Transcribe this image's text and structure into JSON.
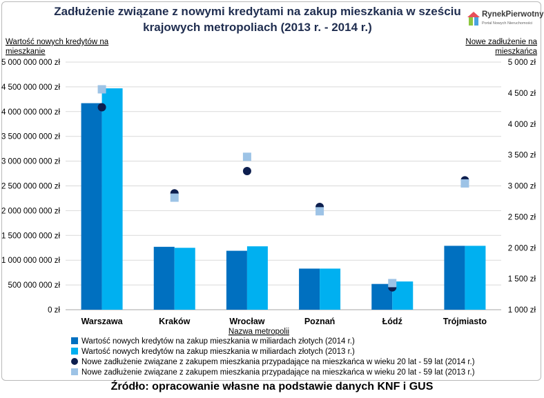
{
  "logo": {
    "name": "RynekPierwotny",
    "tagline": "Portal Nowych Nieruchomości"
  },
  "footer": {
    "source": "Źródło: opracowanie własne na podstawie danych KNF i GUS"
  },
  "chart_data": {
    "type": "bar",
    "title_lines": [
      "Zadłużenie związane z nowymi kredytami na zakup mieszkania w sześciu",
      "krajowych metropoliach (2013 r. - 2014 r.)"
    ],
    "ylabel_lines": [
      "Wartość nowych kredytów na",
      "mieszkanie"
    ],
    "y2label_lines": [
      "Nowe zadłużenie na",
      "mieszkańca"
    ],
    "xlabel": "Nazwa metropolii",
    "categories": [
      "Warszawa",
      "Kraków",
      "Wrocław",
      "Poznań",
      "Łódź",
      "Trójmiasto"
    ],
    "ylim": [
      0,
      5000000000
    ],
    "y2lim": [
      1000,
      5000
    ],
    "y_ticks": [
      {
        "value": 0,
        "label": "0 zł"
      },
      {
        "value": 500000000,
        "label": "500 000 000 zł"
      },
      {
        "value": 1000000000,
        "label": "1 000 000 000 zł"
      },
      {
        "value": 1500000000,
        "label": "1 500 000 000 zł"
      },
      {
        "value": 2000000000,
        "label": "2 000 000 000 zł"
      },
      {
        "value": 2500000000,
        "label": "2 500 000 000 zł"
      },
      {
        "value": 3000000000,
        "label": "3 000 000 000 zł"
      },
      {
        "value": 3500000000,
        "label": "3 500 000 000 zł"
      },
      {
        "value": 4000000000,
        "label": "4 000 000 000 zł"
      },
      {
        "value": 4500000000,
        "label": "4 500 000 000 zł"
      },
      {
        "value": 5000000000,
        "label": "5 000 000 000 zł"
      }
    ],
    "y2_ticks": [
      {
        "value": 1000,
        "label": "1 000 zł"
      },
      {
        "value": 1500,
        "label": "1 500 zł"
      },
      {
        "value": 2000,
        "label": "2 000 zł"
      },
      {
        "value": 2500,
        "label": "2 500 zł"
      },
      {
        "value": 3000,
        "label": "3 000 zł"
      },
      {
        "value": 3500,
        "label": "3 500 zł"
      },
      {
        "value": 4000,
        "label": "4 000 zł"
      },
      {
        "value": 4500,
        "label": "4 500 zł"
      },
      {
        "value": 5000,
        "label": "5 000 zł"
      }
    ],
    "grid": true,
    "legend_position": "bottom",
    "series": [
      {
        "name": "Wartość nowych kredytów na zakup mieszkania w miliardach złotych (2014 r.)",
        "kind": "bar",
        "axis": "left",
        "marker": "square",
        "color": "#0070c0",
        "values": [
          4170000000,
          1270000000,
          1190000000,
          830000000,
          520000000,
          1290000000
        ]
      },
      {
        "name": "Wartość nowych kredytów na zakup mieszkania w miliardach złotych (2013 r.)",
        "kind": "bar",
        "axis": "left",
        "marker": "square",
        "color": "#00b0f0",
        "values": [
          4470000000,
          1250000000,
          1280000000,
          830000000,
          570000000,
          1290000000
        ]
      },
      {
        "name": "Nowe zadłużenie związane z zakupem mieszkania przypadające na mieszkańca w wieku 20 lat - 59 lat (2014 r.)",
        "kind": "scatter",
        "axis": "right",
        "marker": "circle",
        "color": "#0d1f4f",
        "values": [
          4270,
          2880,
          3240,
          2660,
          1360,
          3090
        ]
      },
      {
        "name": "Nowe zadłużenie związane z zakupem mieszkania przypadające na mieszkańca w wieku 20 lat - 59 lat (2013 r.)",
        "kind": "scatter",
        "axis": "right",
        "marker": "square",
        "color": "#9dc3e6",
        "values": [
          4560,
          2810,
          3470,
          2590,
          1430,
          3040
        ]
      }
    ]
  }
}
